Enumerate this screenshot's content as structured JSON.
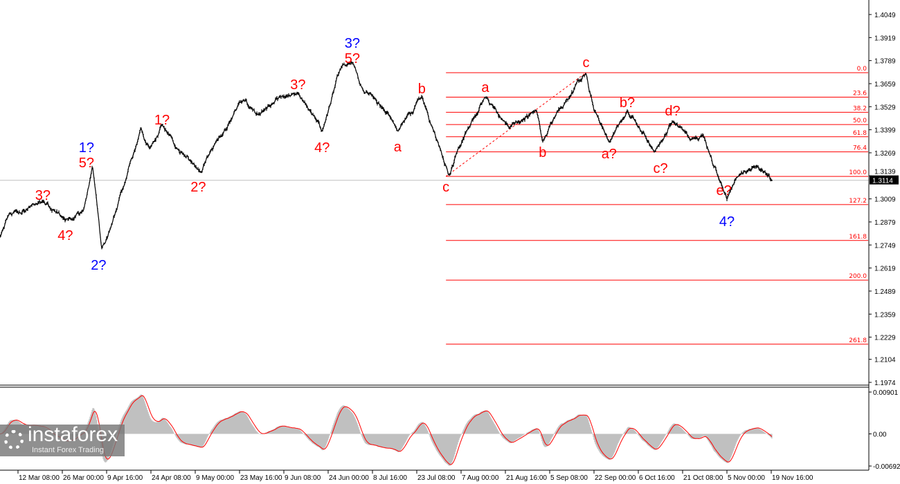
{
  "chart_data": {
    "type": "line",
    "title": "",
    "price_axis": {
      "ticks": [
        "1.4049",
        "1.3919",
        "1.3789",
        "1.3659",
        "1.3529",
        "1.3399",
        "1.3269",
        "1.3139",
        "1.3009",
        "1.2879",
        "1.2749",
        "1.2619",
        "1.2489",
        "1.2359",
        "1.2229",
        "1.2104",
        "1.1974"
      ],
      "range": [
        1.1974,
        1.4049
      ]
    },
    "time_axis": {
      "ticks": [
        "12 Mar 08:00",
        "26 Mar 00:00",
        "9 Apr 16:00",
        "24 Apr 08:00",
        "9 May 00:00",
        "23 May 16:00",
        "9 Jun 08:00",
        "24 Jun 00:00",
        "8 Jul 16:00",
        "23 Jul 08:00",
        "7 Aug 00:00",
        "21 Aug 16:00",
        "5 Sep 08:00",
        "22 Sep 00:00",
        "6 Oct 16:00",
        "21 Oct 08:00",
        "5 Nov 00:00",
        "19 Nov 16:00"
      ]
    },
    "current_price": "1.3114",
    "price_series": [
      [
        "6 Mar",
        1.2746
      ],
      [
        "9 Mar",
        1.2902
      ],
      [
        "20 Mar",
        1.2999
      ],
      [
        "27 Mar",
        1.2883
      ],
      [
        "2 Apr",
        1.2941
      ],
      [
        "5 Apr",
        1.3195
      ],
      [
        "8 Apr",
        1.2727
      ],
      [
        "11 Apr",
        1.2844
      ],
      [
        "16 Apr",
        1.3117
      ],
      [
        "21 Apr",
        1.3409
      ],
      [
        "24 Apr",
        1.3292
      ],
      [
        "28 Apr",
        1.3429
      ],
      [
        "3 May",
        1.3292
      ],
      [
        "11 May",
        1.3156
      ],
      [
        "14 May",
        1.3273
      ],
      [
        "25 May",
        1.3565
      ],
      [
        "31 May",
        1.3487
      ],
      [
        "8 Jun",
        1.3585
      ],
      [
        "14 Jun",
        1.3604
      ],
      [
        "22 Jun",
        1.339
      ],
      [
        "28 Jun",
        1.3741
      ],
      [
        "2 Jul",
        1.378
      ],
      [
        "5 Jul",
        1.3643
      ],
      [
        "14 Jul",
        1.3487
      ],
      [
        "17 Jul",
        1.339
      ],
      [
        "25 Jul",
        1.3585
      ],
      [
        "29 Jul",
        1.339
      ],
      [
        "3 Aug",
        1.3136
      ],
      [
        "6 Aug",
        1.3292
      ],
      [
        "15 Aug",
        1.3585
      ],
      [
        "23 Aug",
        1.3409
      ],
      [
        "1 Sep",
        1.3507
      ],
      [
        "3 Sep",
        1.3331
      ],
      [
        "7 Sep",
        1.3468
      ],
      [
        "19 Sep",
        1.3721
      ],
      [
        "22 Sep",
        1.3507
      ],
      [
        "27 Sep",
        1.3331
      ],
      [
        "3 Oct",
        1.3507
      ],
      [
        "12 Oct",
        1.3273
      ],
      [
        "18 Oct",
        1.3448
      ],
      [
        "25 Oct",
        1.3351
      ],
      [
        "28 Oct",
        1.337
      ],
      [
        "2 Nov",
        1.3136
      ],
      [
        "5 Nov",
        1.3008
      ],
      [
        "8 Nov",
        1.3125
      ],
      [
        "15 Nov",
        1.3195
      ],
      [
        "20 Nov",
        1.3109
      ]
    ],
    "wave_labels": [
      {
        "text": "3?",
        "color": "#ff0000",
        "date": "20 Mar",
        "price": 1.3031
      },
      {
        "text": "4?",
        "color": "#ff0000",
        "date": "27 Mar",
        "price": 1.2805
      },
      {
        "text": "1?",
        "color": "#0000ff",
        "date": "3 Apr",
        "price": 1.33
      },
      {
        "text": "5?",
        "color": "#ff0000",
        "date": "3 Apr",
        "price": 1.3238
      },
      {
        "text": "2?",
        "color": "#0000ff",
        "date": "7 Apr",
        "price": 1.2637
      },
      {
        "text": "1?",
        "color": "#ff0000",
        "date": "28 Apr",
        "price": 1.3456
      },
      {
        "text": "2?",
        "color": "#ff0000",
        "date": "10 May",
        "price": 1.3078
      },
      {
        "text": "3?",
        "color": "#ff0000",
        "date": "14 Jun",
        "price": 1.3655
      },
      {
        "text": "4?",
        "color": "#ff0000",
        "date": "22 Jun",
        "price": 1.33
      },
      {
        "text": "3?",
        "color": "#0000ff",
        "date": "2 Jul",
        "price": 1.3889
      },
      {
        "text": "5?",
        "color": "#ff0000",
        "date": "2 Jul",
        "price": 1.3811
      },
      {
        "text": "a",
        "color": "#ff0000",
        "date": "17 Jul",
        "price": 1.3304
      },
      {
        "text": "b",
        "color": "#ff0000",
        "date": "25 Jul",
        "price": 1.3632
      },
      {
        "text": "c",
        "color": "#ff0000",
        "date": "2 Aug",
        "price": 1.3078
      },
      {
        "text": "a",
        "color": "#ff0000",
        "date": "15 Aug",
        "price": 1.3639
      },
      {
        "text": "b",
        "color": "#ff0000",
        "date": "3 Sep",
        "price": 1.3273
      },
      {
        "text": "c",
        "color": "#ff0000",
        "date": "19 Sep",
        "price": 1.378
      },
      {
        "text": "a?",
        "color": "#ff0000",
        "date": "27 Sep",
        "price": 1.3265
      },
      {
        "text": "b?",
        "color": "#ff0000",
        "date": "3 Oct",
        "price": 1.3554
      },
      {
        "text": "c?",
        "color": "#ff0000",
        "date": "14 Oct",
        "price": 1.3183
      },
      {
        "text": "d?",
        "color": "#ff0000",
        "date": "18 Oct",
        "price": 1.3507
      },
      {
        "text": "e?",
        "color": "#ff0000",
        "date": "4 Nov",
        "price": 1.3058
      },
      {
        "text": "4?",
        "color": "#0000ff",
        "date": "5 Nov",
        "price": 1.2883
      }
    ],
    "fibonacci": {
      "from": {
        "date": "2 Aug",
        "price": 1.3136
      },
      "to": {
        "date": "19 Sep",
        "price": 1.3721
      },
      "color": "#ff0000",
      "levels": [
        {
          "label": "0.0",
          "ratio": 0
        },
        {
          "label": "23.6",
          "ratio": 0.236
        },
        {
          "label": "38.2",
          "ratio": 0.382
        },
        {
          "label": "50.0",
          "ratio": 0.5
        },
        {
          "label": "61.8",
          "ratio": 0.618
        },
        {
          "label": "76.4",
          "ratio": 0.764
        },
        {
          "label": "100.0",
          "ratio": 1.0
        },
        {
          "label": "127.2",
          "ratio": 1.272
        },
        {
          "label": "161.8",
          "ratio": 1.618
        },
        {
          "label": "200.0",
          "ratio": 2.0
        },
        {
          "label": "261.8",
          "ratio": 2.618
        }
      ]
    },
    "oscillator": {
      "ticks": [
        "0.00901",
        "0.00",
        "-0.00692"
      ],
      "range": [
        -0.00692,
        0.00901
      ],
      "histogram_color": "#c0c0c0",
      "signal_color": "#ff0000"
    }
  },
  "logo": {
    "name": "instaforex",
    "tagline": "Instant Forex Trading"
  }
}
